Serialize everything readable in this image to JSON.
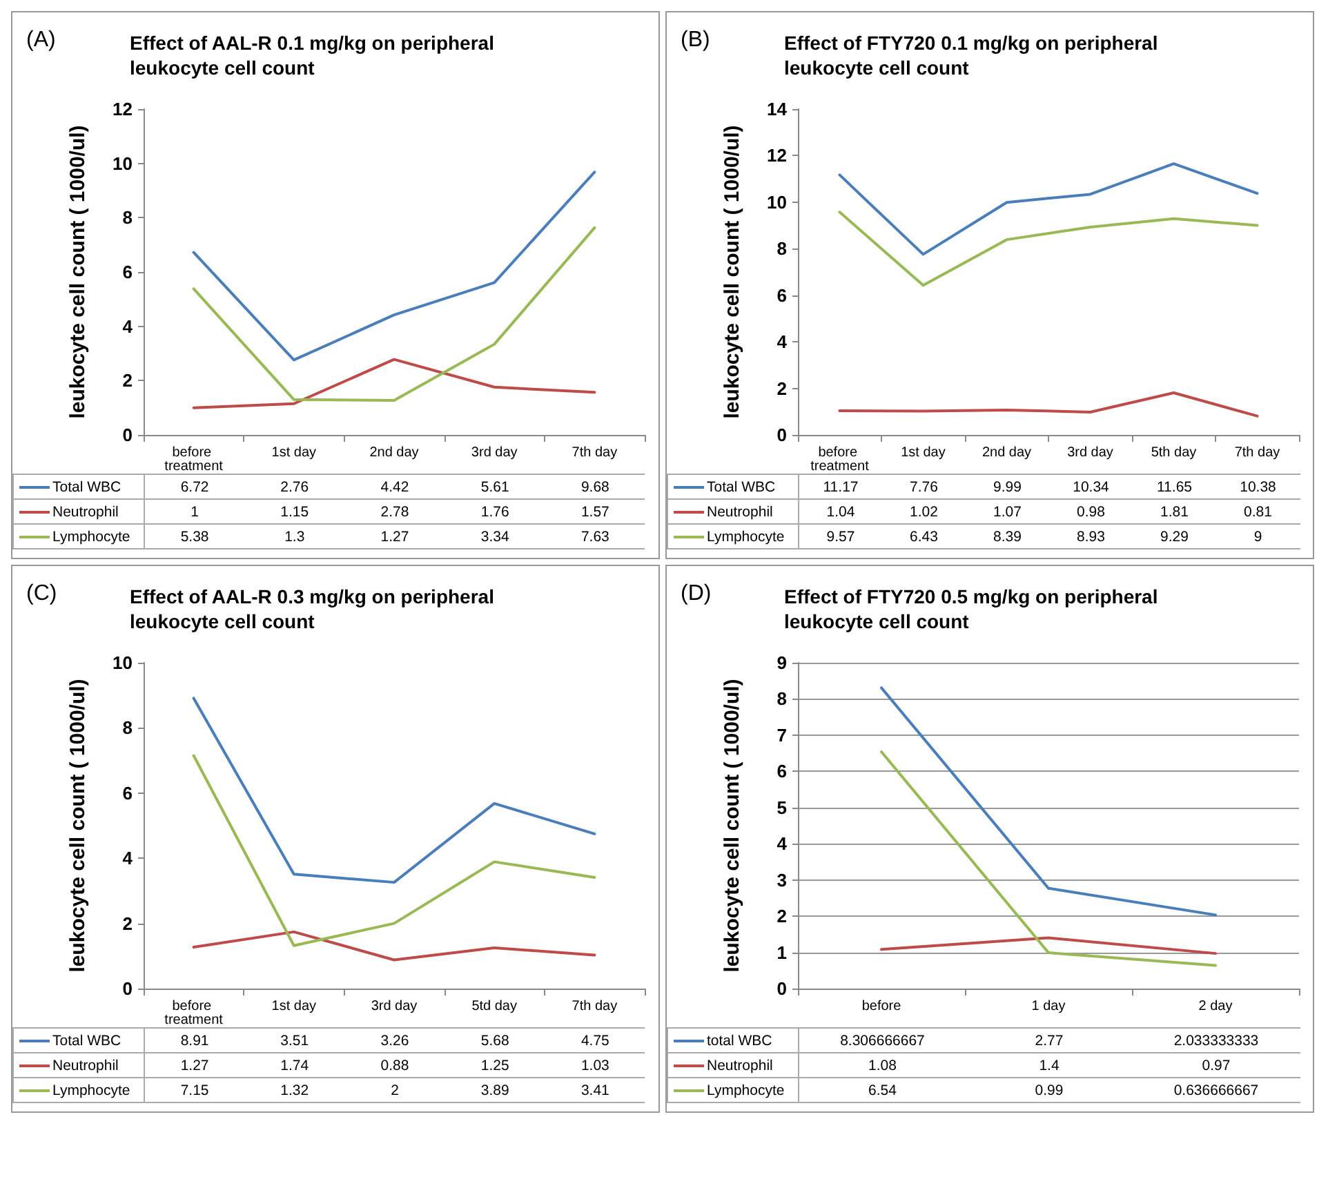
{
  "chart_data": [
    {
      "type": "line",
      "title": "Effect of AAL-R 0.1 mg/kg on peripheral leukocyte cell count",
      "annotations": [
        "(A)"
      ],
      "ylabel": "leukocyte cell count ( 1000/ul)",
      "categories": [
        "before treatment",
        "1st day",
        "2nd day",
        "3rd day",
        "7th day"
      ],
      "ylim": [
        0,
        12
      ],
      "yticks": [
        0,
        2,
        4,
        6,
        8,
        10,
        12
      ],
      "grid": false,
      "legend": "bottom",
      "marker": "none",
      "line_style": "solid",
      "data_labels": true,
      "series": [
        {
          "name": "Total WBC",
          "color": "#4a7ebb",
          "values": [
            6.72,
            2.76,
            4.42,
            5.61,
            9.68
          ]
        },
        {
          "name": "Neutrophil",
          "color": "#be4b48",
          "values": [
            1,
            1.15,
            2.78,
            1.76,
            1.57
          ]
        },
        {
          "name": "Lymphocyte",
          "color": "#98b954",
          "values": [
            5.38,
            1.3,
            1.27,
            3.34,
            7.63
          ]
        }
      ]
    },
    {
      "type": "line",
      "title": "Effect of FTY720 0.1 mg/kg on peripheral leukocyte cell count",
      "annotations": [
        "(B)"
      ],
      "ylabel": "leukocyte cell count ( 1000/ul)",
      "categories": [
        "before treatment",
        "1st day",
        "2nd day",
        "3rd day",
        "5th day",
        "7th day"
      ],
      "ylim": [
        0,
        14
      ],
      "yticks": [
        0,
        2,
        4,
        6,
        8,
        10,
        12,
        14
      ],
      "grid": false,
      "legend": "bottom",
      "marker": "none",
      "line_style": "solid",
      "data_labels": true,
      "series": [
        {
          "name": "Total WBC",
          "color": "#4a7ebb",
          "values": [
            11.17,
            7.76,
            9.99,
            10.34,
            11.65,
            10.38
          ]
        },
        {
          "name": "Neutrophil",
          "color": "#be4b48",
          "values": [
            1.04,
            1.02,
            1.07,
            0.98,
            1.81,
            0.81
          ]
        },
        {
          "name": "Lymphocyte",
          "color": "#98b954",
          "values": [
            9.57,
            6.43,
            8.39,
            8.93,
            9.29,
            9
          ]
        }
      ]
    },
    {
      "type": "line",
      "title": "Effect of AAL-R 0.3 mg/kg on peripheral leukocyte cell count",
      "annotations": [
        "(C)"
      ],
      "ylabel": "leukocyte cell count ( 1000/ul)",
      "categories": [
        "before treatment",
        "1st day",
        "3rd day",
        "5td day",
        "7th day"
      ],
      "ylim": [
        0,
        10
      ],
      "yticks": [
        0,
        2,
        4,
        6,
        8,
        10
      ],
      "grid": false,
      "legend": "bottom",
      "marker": "none",
      "line_style": "solid",
      "data_labels": true,
      "series": [
        {
          "name": "Total WBC",
          "color": "#4a7ebb",
          "values": [
            8.91,
            3.51,
            3.26,
            5.68,
            4.75
          ]
        },
        {
          "name": "Neutrophil",
          "color": "#be4b48",
          "values": [
            1.27,
            1.74,
            0.88,
            1.25,
            1.03
          ]
        },
        {
          "name": "Lymphocyte",
          "color": "#98b954",
          "values": [
            7.15,
            1.32,
            2,
            3.89,
            3.41
          ]
        }
      ]
    },
    {
      "type": "line",
      "title": "Effect of FTY720 0.5 mg/kg on peripheral leukocyte cell count",
      "annotations": [
        "(D)"
      ],
      "ylabel": "leukocyte cell count ( 1000/ul)",
      "categories": [
        "before",
        "1 day",
        "2 day"
      ],
      "ylim": [
        0,
        9
      ],
      "yticks": [
        0,
        1,
        2,
        3,
        4,
        5,
        6,
        7,
        8,
        9
      ],
      "grid": "y",
      "legend": "bottom",
      "marker": "none",
      "line_style": "solid",
      "data_labels": true,
      "series": [
        {
          "name": "total WBC",
          "color": "#4a7ebb",
          "values": [
            8.306666667,
            2.77,
            2.033333333
          ]
        },
        {
          "name": "Neutrophil",
          "color": "#be4b48",
          "values": [
            1.08,
            1.4,
            0.97
          ]
        },
        {
          "name": "Lymphocyte",
          "color": "#98b954",
          "values": [
            6.54,
            0.99,
            0.636666667
          ]
        }
      ]
    }
  ]
}
